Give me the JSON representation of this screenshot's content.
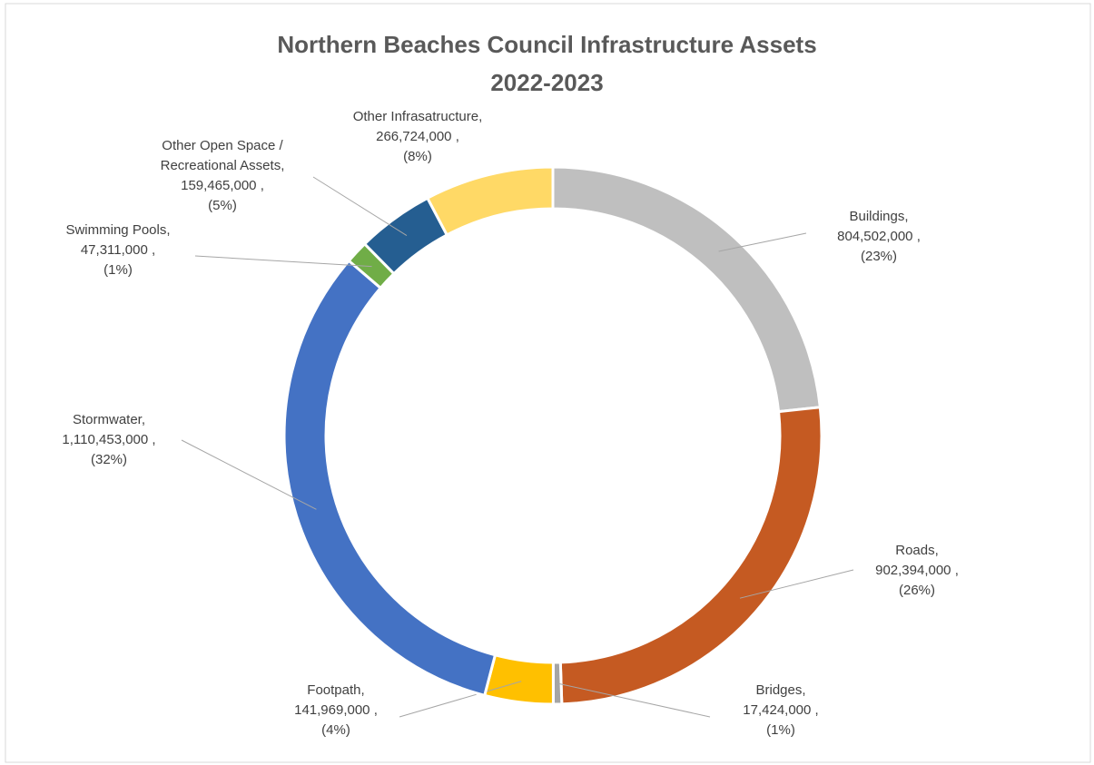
{
  "chart_data": {
    "type": "donut",
    "title": "Northern Beaches Council Infrastructure Assets",
    "subtitle": "2022-2023",
    "categories": [
      "Buildings,",
      "Roads,",
      "Bridges,",
      "Footpath,",
      "Stormwater,",
      "Swimming Pools,",
      "Other Open Space / Recreational Assets,",
      "Other Infrasatructure,"
    ],
    "values": [
      804502000,
      902394000,
      17424000,
      141969000,
      1110453000,
      47311000,
      159465000,
      266724000
    ],
    "value_labels": [
      "804,502,000 ,",
      "902,394,000 ,",
      "17,424,000 ,",
      "141,969,000 ,",
      "1,110,453,000 ,",
      "47,311,000 ,",
      "159,465,000 ,",
      "266,724,000 ,"
    ],
    "percents": [
      23,
      26,
      1,
      4,
      32,
      1,
      5,
      8
    ],
    "percent_labels": [
      "(23%)",
      "(26%)",
      "(1%)",
      "(4%)",
      "(32%)",
      "(1%)",
      "(5%)",
      "(8%)"
    ],
    "colors": [
      "#bfbfbf",
      "#c55a22",
      "#a5a5a5",
      "#ffc000",
      "#4472c4",
      "#70ad47",
      "#255e91",
      "#ffd966"
    ]
  }
}
